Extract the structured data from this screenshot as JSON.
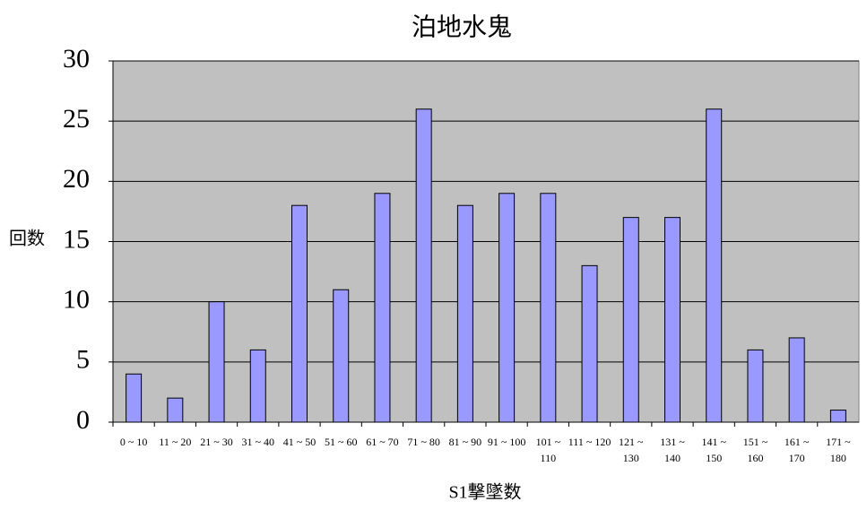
{
  "chart_data": {
    "type": "bar",
    "title": "泊地水鬼",
    "y_label": "回数",
    "x_label": "S1撃墜数",
    "categories": [
      "0 ~ 10",
      "11 ~ 20",
      "21 ~ 30",
      "31 ~ 40",
      "41 ~ 50",
      "51 ~ 60",
      "61 ~ 70",
      "71 ~ 80",
      "81 ~ 90",
      "91 ~ 100",
      "101 ~ 110",
      "111 ~ 120",
      "121 ~ 130",
      "131 ~ 140",
      "141 ~ 150",
      "151 ~ 160",
      "161 ~ 170",
      "171 ~ 180"
    ],
    "values": [
      4,
      2,
      10,
      6,
      18,
      11,
      19,
      26,
      18,
      19,
      19,
      13,
      17,
      17,
      26,
      6,
      7,
      1
    ],
    "color": "#9999ff",
    "background": "#c0c0c0",
    "ylim": [
      0,
      30
    ],
    "yticks": [
      0,
      5,
      10,
      15,
      20,
      25,
      30
    ],
    "grid": true
  }
}
